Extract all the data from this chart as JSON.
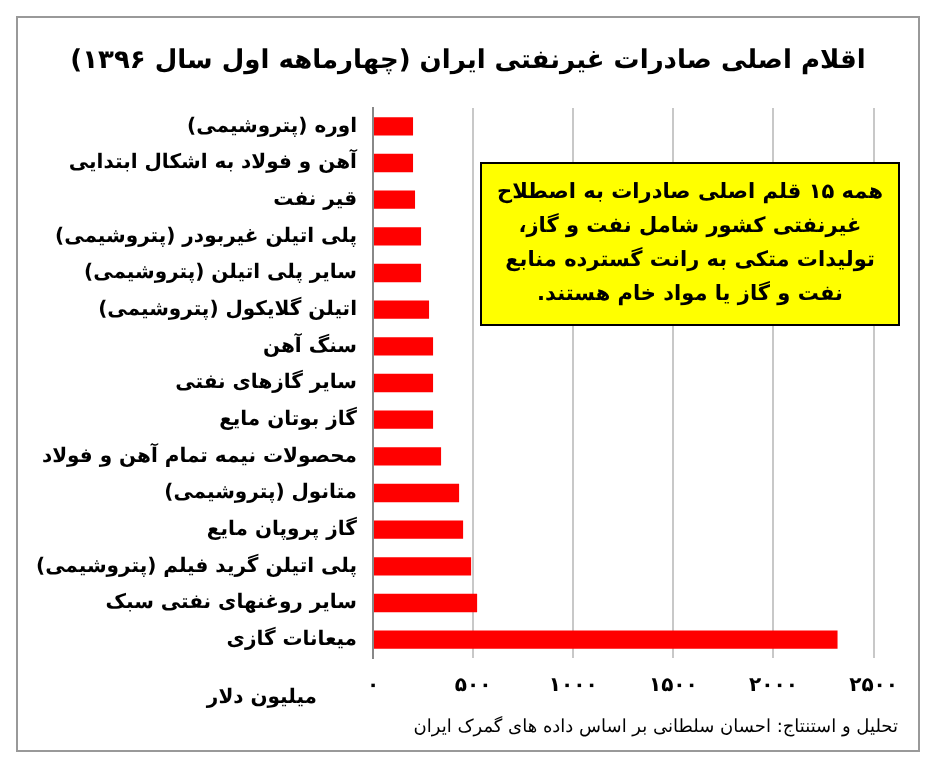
{
  "chart_data": {
    "type": "bar",
    "orientation": "horizontal",
    "title": "اقلام اصلی صادرات غیرنفتی ایران (چهارماهه اول سال ۱۳۹۶)",
    "xlabel": "میلیون دلار",
    "categories": [
      "اوره (پتروشیمی)",
      "آهن و فولاد به اشکال ابتدایی",
      "قیر نفت",
      "پلی اتیلن غیربودر (پتروشیمی)",
      "سایر پلی اتیلن (پتروشیمی)",
      "اتیلن گلایکول (پتروشیمی)",
      "سنگ آهن",
      "سایر گازهای نفتی",
      "گاز بوتان مایع",
      "محصولات نیمه تمام آهن و فولاد",
      "متانول (پتروشیمی)",
      "گاز پروپان مایع",
      "پلی اتیلن گرید فیلم (پتروشیمی)",
      "سایر روغنهای نفتی سبک",
      "میعانات گازی"
    ],
    "values": [
      200,
      200,
      210,
      240,
      240,
      280,
      300,
      300,
      300,
      340,
      430,
      450,
      490,
      520,
      2320
    ],
    "color": "#ff0000",
    "xlim": [
      0,
      2500
    ],
    "xticks": [
      {
        "value": 0,
        "label": "۰"
      },
      {
        "value": 500,
        "label": "۵۰۰"
      },
      {
        "value": 1000,
        "label": "۱۰۰۰"
      },
      {
        "value": 1500,
        "label": "۱۵۰۰"
      },
      {
        "value": 2000,
        "label": "۲۰۰۰"
      },
      {
        "value": 2500,
        "label": "۲۵۰۰"
      }
    ],
    "grid": "x",
    "legend": false,
    "annotations": [
      "همه ۱۵ قلم اصلی صادرات به اصطلاح غیرنفتی کشور شامل نفت و گاز، تولیدات متکی به رانت گسترده منابع نفت و گاز یا مواد خام هستند.",
      "تحلیل و استنتاج: احسان سلطانی بر اساس داده های گمرک ایران"
    ]
  }
}
